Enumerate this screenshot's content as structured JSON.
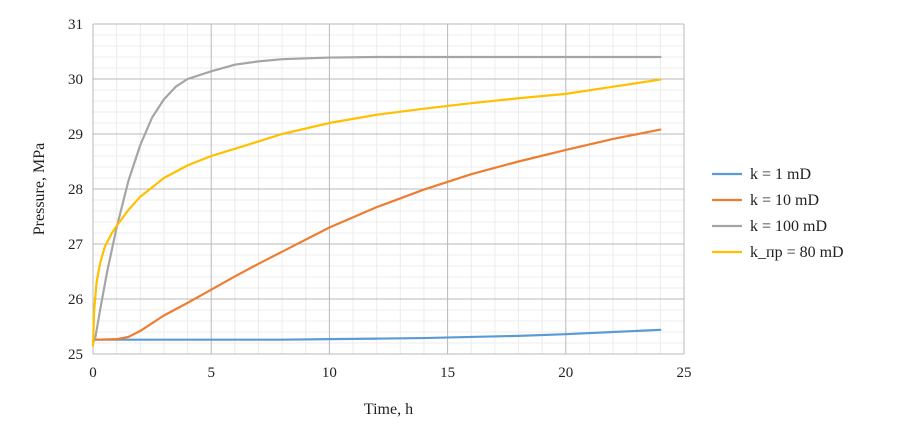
{
  "chart_data": {
    "type": "line",
    "xlabel": "Time, h",
    "ylabel": "Pressure, MPa",
    "xlim": [
      0,
      25
    ],
    "ylim": [
      25,
      31
    ],
    "xticks": [
      0,
      5,
      10,
      15,
      20,
      25
    ],
    "yticks": [
      25,
      26,
      27,
      28,
      29,
      30,
      31
    ],
    "major_grid": true,
    "minor_grid": true,
    "legend_position": "right",
    "series": [
      {
        "name": "k = 1 mD",
        "color": "#5B9BD5",
        "x": [
          0,
          0.1,
          2,
          5,
          8,
          10,
          12,
          14,
          16,
          18,
          20,
          22,
          24
        ],
        "y": [
          25.25,
          25.26,
          25.26,
          25.26,
          25.26,
          25.27,
          25.28,
          25.29,
          25.31,
          25.33,
          25.36,
          25.4,
          25.44
        ]
      },
      {
        "name": "k = 10 mD",
        "color": "#ED7D31",
        "x": [
          0,
          0.1,
          1,
          1.5,
          2,
          3,
          4,
          5,
          6,
          7,
          8,
          10,
          12,
          14,
          16,
          18,
          20,
          22,
          24
        ],
        "y": [
          25.25,
          25.26,
          25.27,
          25.31,
          25.42,
          25.7,
          25.93,
          26.17,
          26.41,
          26.64,
          26.86,
          27.3,
          27.67,
          27.99,
          28.27,
          28.5,
          28.71,
          28.91,
          29.08
        ]
      },
      {
        "name": "k = 100 mD",
        "color": "#A5A5A5",
        "x": [
          0,
          0.1,
          0.3,
          0.6,
          1,
          1.5,
          2,
          2.5,
          3,
          3.5,
          4,
          5,
          6,
          7,
          8,
          10,
          12,
          15,
          20,
          24
        ],
        "y": [
          25.2,
          25.3,
          25.8,
          26.5,
          27.3,
          28.15,
          28.8,
          29.3,
          29.63,
          29.86,
          30.0,
          30.14,
          30.26,
          30.32,
          30.36,
          30.39,
          30.4,
          30.4,
          30.4,
          30.4
        ]
      },
      {
        "name": "k_пр = 80 mD",
        "color": "#FFC000",
        "x": [
          0,
          0.05,
          0.15,
          0.3,
          0.5,
          0.8,
          1,
          1.5,
          2,
          3,
          4,
          5,
          6,
          8,
          10,
          12,
          14,
          16,
          18,
          20,
          22,
          24
        ],
        "y": [
          25.15,
          25.8,
          26.3,
          26.65,
          26.95,
          27.2,
          27.33,
          27.62,
          27.86,
          28.2,
          28.43,
          28.6,
          28.73,
          29.0,
          29.2,
          29.35,
          29.46,
          29.56,
          29.65,
          29.73,
          29.86,
          29.99
        ]
      }
    ]
  }
}
